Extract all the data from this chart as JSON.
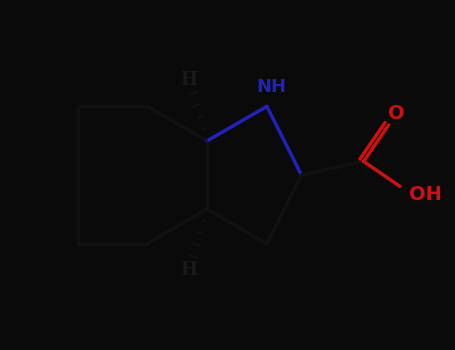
{
  "bg_color": "#0a0a0a",
  "bond_color": "#111111",
  "N_color": "#2222bb",
  "O_color": "#cc1111",
  "figsize": [
    4.55,
    3.5
  ],
  "dpi": 100,
  "bond_lw": 2.5,
  "xlim": [
    -5,
    5
  ],
  "ylim": [
    -3.85,
    3.85
  ]
}
